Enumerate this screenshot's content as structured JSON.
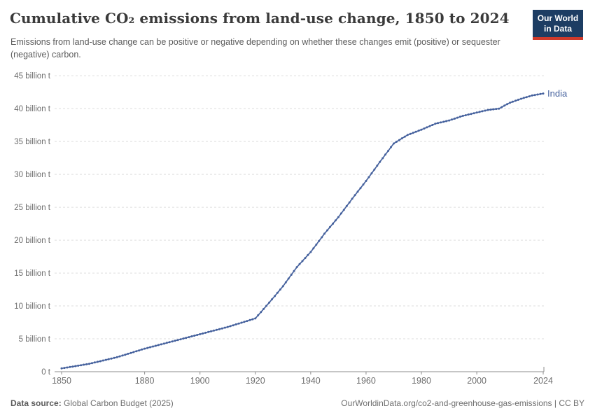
{
  "header": {
    "title": "Cumulative CO₂ emissions from land-use change, 1850 to 2024",
    "subtitle": "Emissions from land-use change can be positive or negative depending on whether these changes emit (positive) or sequester (negative) carbon."
  },
  "logo": {
    "line1": "Our World",
    "line2": "in Data",
    "bg_color": "#1d3d63",
    "accent_color": "#cf3a2b"
  },
  "footer": {
    "source_label": "Data source:",
    "source_value": " Global Carbon Budget (2025)",
    "credit": "OurWorldinData.org/co2-and-greenhouse-gas-emissions | CC BY"
  },
  "chart_data": {
    "type": "line",
    "title": "Cumulative CO₂ emissions from land-use change, 1850 to 2024",
    "xlabel": "",
    "ylabel": "",
    "unit": "billion t",
    "xlim": [
      1850,
      2024
    ],
    "ylim": [
      0,
      45
    ],
    "grid": "horizontal-dashed",
    "legend_position": "end-of-line-label",
    "x_ticks": [
      "1850",
      "1880",
      "1900",
      "1920",
      "1940",
      "1960",
      "1980",
      "2000",
      "2024"
    ],
    "x_tick_values": [
      1850,
      1880,
      1900,
      1920,
      1940,
      1960,
      1980,
      2000,
      2024
    ],
    "y_ticks": [
      {
        "value": 0,
        "label": "0 t"
      },
      {
        "value": 5,
        "label": "5 billion t"
      },
      {
        "value": 10,
        "label": "10 billion t"
      },
      {
        "value": 15,
        "label": "15 billion t"
      },
      {
        "value": 20,
        "label": "20 billion t"
      },
      {
        "value": 25,
        "label": "25 billion t"
      },
      {
        "value": 30,
        "label": "30 billion t"
      },
      {
        "value": 35,
        "label": "35 billion t"
      },
      {
        "value": 40,
        "label": "40 billion t"
      },
      {
        "value": 45,
        "label": "45 billion t"
      }
    ],
    "series": [
      {
        "name": "India",
        "color": "#45619d",
        "marker": "dot-per-year",
        "points": [
          [
            1850,
            0.5
          ],
          [
            1855,
            0.85
          ],
          [
            1860,
            1.2
          ],
          [
            1865,
            1.7
          ],
          [
            1870,
            2.2
          ],
          [
            1875,
            2.85
          ],
          [
            1880,
            3.5
          ],
          [
            1885,
            4.05
          ],
          [
            1890,
            4.6
          ],
          [
            1895,
            5.15
          ],
          [
            1900,
            5.7
          ],
          [
            1905,
            6.25
          ],
          [
            1910,
            6.8
          ],
          [
            1915,
            7.45
          ],
          [
            1920,
            8.1
          ],
          [
            1925,
            10.5
          ],
          [
            1930,
            13.0
          ],
          [
            1935,
            15.9
          ],
          [
            1940,
            18.2
          ],
          [
            1945,
            21.0
          ],
          [
            1950,
            23.5
          ],
          [
            1955,
            26.3
          ],
          [
            1960,
            29.0
          ],
          [
            1965,
            31.9
          ],
          [
            1970,
            34.7
          ],
          [
            1975,
            36.0
          ],
          [
            1980,
            36.8
          ],
          [
            1985,
            37.7
          ],
          [
            1990,
            38.2
          ],
          [
            1995,
            38.9
          ],
          [
            2000,
            39.4
          ],
          [
            2004,
            39.8
          ],
          [
            2008,
            40.0
          ],
          [
            2012,
            40.9
          ],
          [
            2016,
            41.5
          ],
          [
            2020,
            42.0
          ],
          [
            2024,
            42.3
          ]
        ]
      }
    ],
    "colors": {
      "gridline": "#dddddd",
      "axis_line": "#8c8c8c",
      "tick_label": "#6e6e6e"
    }
  }
}
